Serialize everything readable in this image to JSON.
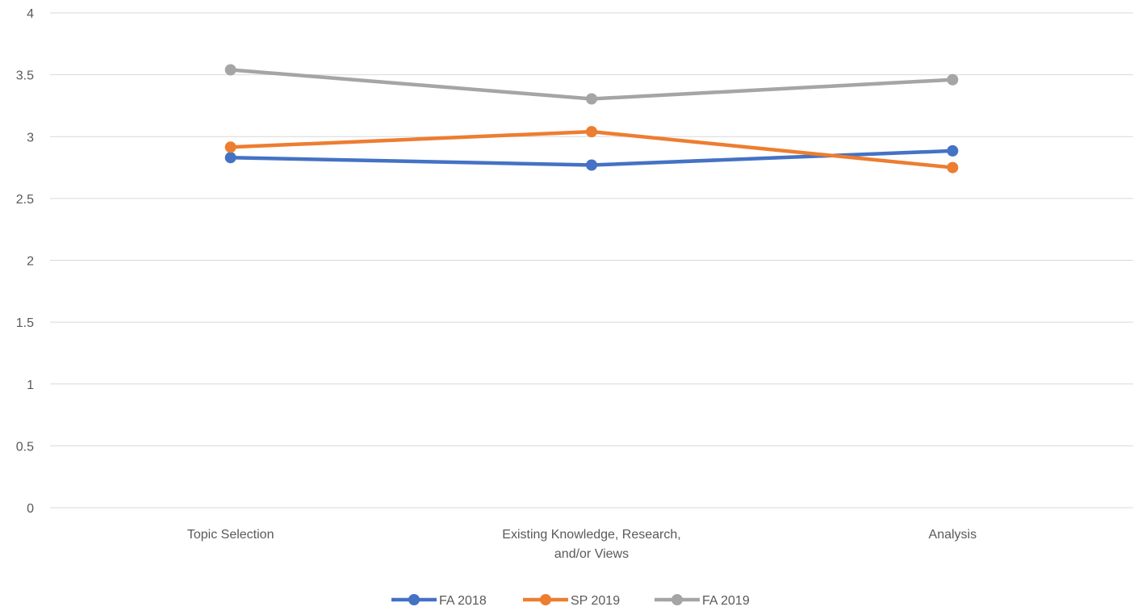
{
  "chart_data": {
    "type": "line",
    "categories": [
      [
        "Topic Selection"
      ],
      [
        "Existing Knowledge, Research,",
        "and/or Views"
      ],
      [
        "Analysis"
      ]
    ],
    "ylim": [
      0,
      4
    ],
    "yticks": [
      "0",
      "0.5",
      "1",
      "1.5",
      "2",
      "2.5",
      "3",
      "3.5",
      "4"
    ],
    "grid": true,
    "legend_position": "bottom",
    "series": [
      {
        "name": "FA 2018",
        "color": "#4472c4",
        "values": [
          2.83,
          2.77,
          2.885
        ]
      },
      {
        "name": "SP 2019",
        "color": "#ed7d31",
        "values": [
          2.915,
          3.04,
          2.75
        ]
      },
      {
        "name": "FA 2019",
        "color": "#a5a5a5",
        "values": [
          3.54,
          3.305,
          3.46
        ]
      }
    ]
  }
}
